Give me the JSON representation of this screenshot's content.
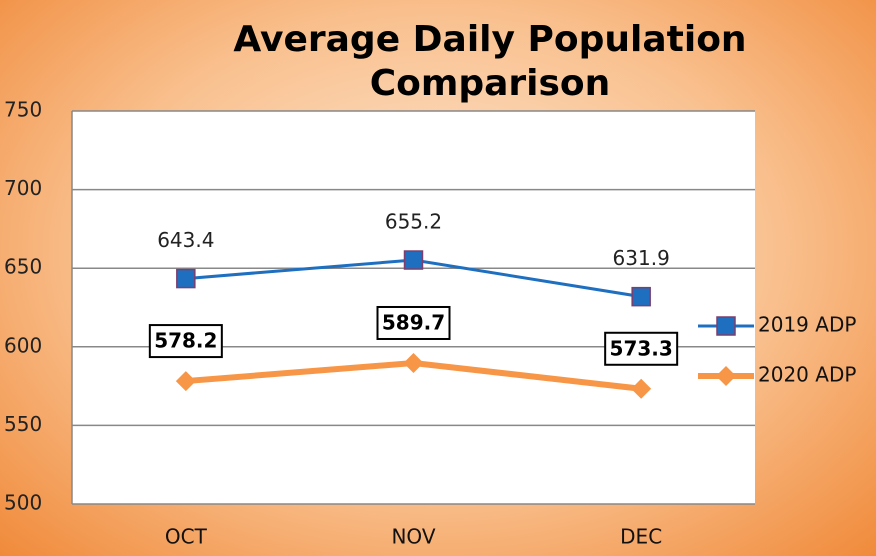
{
  "chart_data": {
    "type": "line",
    "title": "Average Daily Population Comparison",
    "categories": [
      "OCT",
      "NOV",
      "DEC"
    ],
    "series": [
      {
        "name": "2019 ADP",
        "color": "#1f6fc0",
        "values": [
          643.4,
          655.2,
          631.9
        ]
      },
      {
        "name": "2020 ADP",
        "color": "#f79646",
        "values": [
          578.2,
          589.7,
          573.3
        ]
      }
    ],
    "ylim": [
      500,
      750
    ],
    "yticks": [
      500,
      550,
      600,
      650,
      700,
      750
    ],
    "grid": true,
    "legend": "right"
  }
}
